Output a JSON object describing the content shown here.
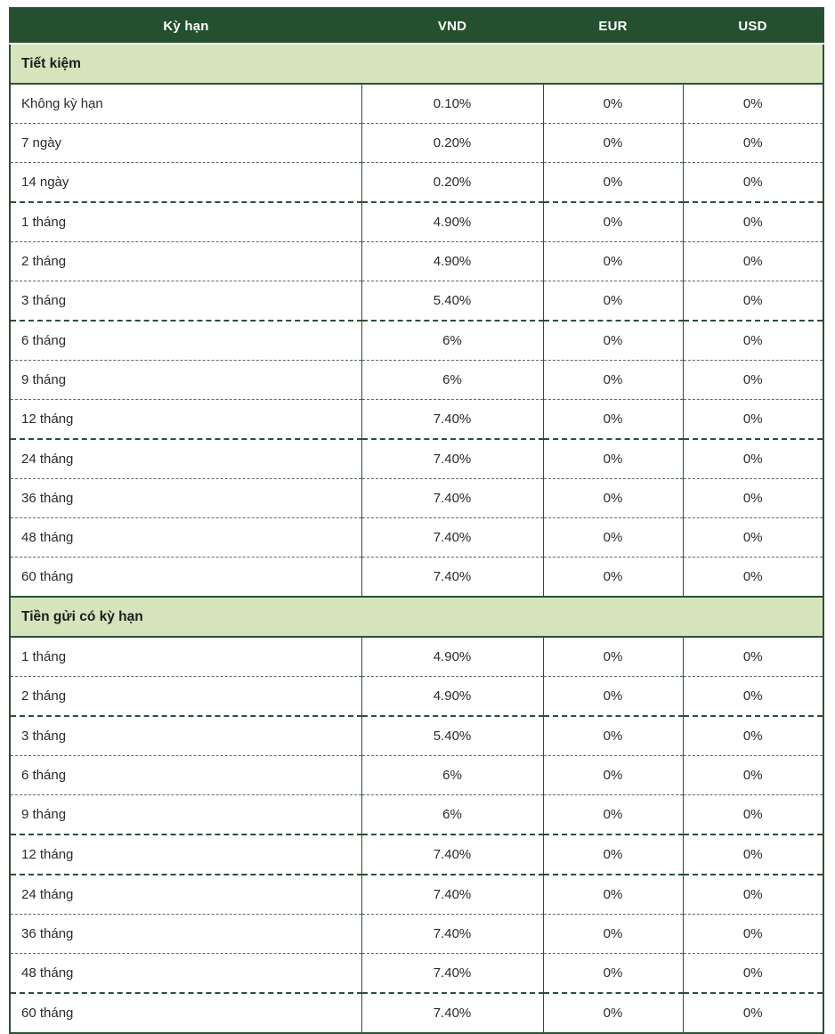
{
  "table": {
    "columns": [
      {
        "key": "term",
        "label": "Kỳ hạn"
      },
      {
        "key": "vnd",
        "label": "VND"
      },
      {
        "key": "eur",
        "label": "EUR"
      },
      {
        "key": "usd",
        "label": "USD"
      }
    ],
    "sections": [
      {
        "title": "Tiết kiệm",
        "rows": [
          {
            "term": "Không kỳ hạn",
            "vnd": "0.10%",
            "eur": "0%",
            "usd": "0%",
            "divider_after": "thin"
          },
          {
            "term": "7 ngày",
            "vnd": "0.20%",
            "eur": "0%",
            "usd": "0%",
            "divider_after": "thin"
          },
          {
            "term": "14 ngày",
            "vnd": "0.20%",
            "eur": "0%",
            "usd": "0%",
            "divider_after": "thick"
          },
          {
            "term": "1 tháng",
            "vnd": "4.90%",
            "eur": "0%",
            "usd": "0%",
            "divider_after": "thin"
          },
          {
            "term": "2 tháng",
            "vnd": "4.90%",
            "eur": "0%",
            "usd": "0%",
            "divider_after": "thin"
          },
          {
            "term": "3 tháng",
            "vnd": "5.40%",
            "eur": "0%",
            "usd": "0%",
            "divider_after": "thick"
          },
          {
            "term": "6 tháng",
            "vnd": "6%",
            "eur": "0%",
            "usd": "0%",
            "divider_after": "thin"
          },
          {
            "term": "9 tháng",
            "vnd": "6%",
            "eur": "0%",
            "usd": "0%",
            "divider_after": "thin"
          },
          {
            "term": "12 tháng",
            "vnd": "7.40%",
            "eur": "0%",
            "usd": "0%",
            "divider_after": "thick"
          },
          {
            "term": "24 tháng",
            "vnd": "7.40%",
            "eur": "0%",
            "usd": "0%",
            "divider_after": "thin"
          },
          {
            "term": "36 tháng",
            "vnd": "7.40%",
            "eur": "0%",
            "usd": "0%",
            "divider_after": "thin"
          },
          {
            "term": "48 tháng",
            "vnd": "7.40%",
            "eur": "0%",
            "usd": "0%",
            "divider_after": "thin"
          },
          {
            "term": "60 tháng",
            "vnd": "7.40%",
            "eur": "0%",
            "usd": "0%",
            "divider_after": null
          }
        ]
      },
      {
        "title": "Tiền gửi có kỳ hạn",
        "rows": [
          {
            "term": "1 tháng",
            "vnd": "4.90%",
            "eur": "0%",
            "usd": "0%",
            "divider_after": "thin"
          },
          {
            "term": "2 tháng",
            "vnd": "4.90%",
            "eur": "0%",
            "usd": "0%",
            "divider_after": "thick"
          },
          {
            "term": "3 tháng",
            "vnd": "5.40%",
            "eur": "0%",
            "usd": "0%",
            "divider_after": "thin"
          },
          {
            "term": "6 tháng",
            "vnd": "6%",
            "eur": "0%",
            "usd": "0%",
            "divider_after": "thin"
          },
          {
            "term": "9 tháng",
            "vnd": "6%",
            "eur": "0%",
            "usd": "0%",
            "divider_after": "thick"
          },
          {
            "term": "12 tháng",
            "vnd": "7.40%",
            "eur": "0%",
            "usd": "0%",
            "divider_after": "thick"
          },
          {
            "term": "24 tháng",
            "vnd": "7.40%",
            "eur": "0%",
            "usd": "0%",
            "divider_after": "thin"
          },
          {
            "term": "36 tháng",
            "vnd": "7.40%",
            "eur": "0%",
            "usd": "0%",
            "divider_after": "thin"
          },
          {
            "term": "48 tháng",
            "vnd": "7.40%",
            "eur": "0%",
            "usd": "0%",
            "divider_after": "thick"
          },
          {
            "term": "60 tháng",
            "vnd": "7.40%",
            "eur": "0%",
            "usd": "0%",
            "divider_after": null
          }
        ]
      }
    ]
  },
  "colors": {
    "header_bg": "#24502f",
    "header_text": "#ffffff",
    "section_bg": "#d5e4bd",
    "section_text": "#1c1c1c",
    "body_text": "#2b2b2b",
    "grid_solid": "#2c4f36",
    "grid_thin_dash": "#5a6a60",
    "grid_thick_dash": "#2c4f36"
  }
}
